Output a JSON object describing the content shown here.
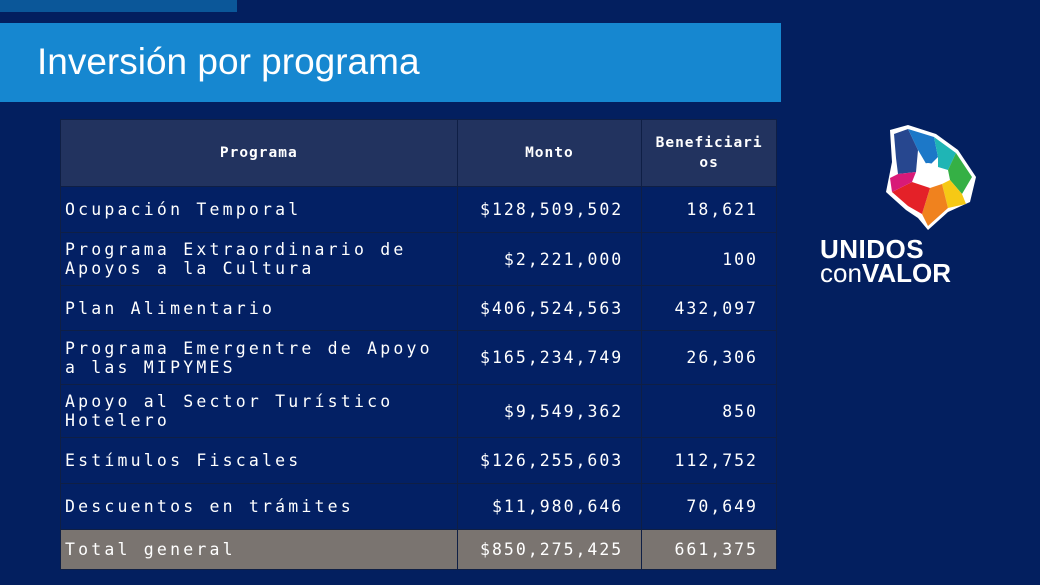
{
  "title": "Inversión por programa",
  "table": {
    "headers": [
      "Programa",
      "Monto",
      "Beneficiarios"
    ],
    "rows": [
      {
        "programa": "Ocupación Temporal",
        "monto": "$128,509,502",
        "beneficiarios": "18,621"
      },
      {
        "programa": "Programa Extraordinario de Apoyos a la Cultura",
        "monto": "$2,221,000",
        "beneficiarios": "100"
      },
      {
        "programa": "Plan Alimentario",
        "monto": "$406,524,563",
        "beneficiarios": "432,097"
      },
      {
        "programa": "Programa Emergentre de Apoyo a las MIPYMES",
        "monto": "$165,234,749",
        "beneficiarios": "26,306"
      },
      {
        "programa": "Apoyo al Sector Turístico Hotelero",
        "monto": "$9,549,362",
        "beneficiarios": "850"
      },
      {
        "programa": "Estímulos Fiscales",
        "monto": "$126,255,603",
        "beneficiarios": "112,752"
      },
      {
        "programa": "Descuentos en trámites",
        "monto": "$11,980,646",
        "beneficiarios": "70,649"
      }
    ],
    "total": {
      "programa": "Total general",
      "monto": "$850,275,425",
      "beneficiarios": "661,375"
    }
  },
  "logo": {
    "line1": "UNIDOS",
    "line2a": "con",
    "line2b": "VALOR"
  }
}
